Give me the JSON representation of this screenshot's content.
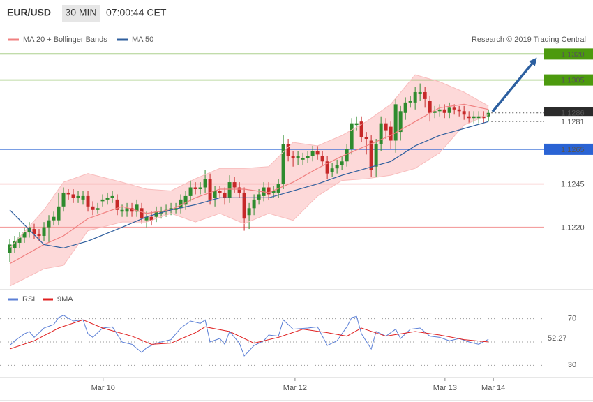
{
  "header": {
    "symbol": "EUR/USD",
    "interval": "30 MIN",
    "time": "07:00:44 CET"
  },
  "copyright": "Research © 2019 Trading Central",
  "chart_data": [
    {
      "type": "candlestick",
      "up_color": "#2e8b2e",
      "down_color": "#c62828",
      "xlim": [
        -2,
        109.4
      ],
      "ylim": [
        1.1186,
        1.1327
      ],
      "x": [
        0,
        1,
        2,
        3,
        4,
        5,
        6,
        7,
        8,
        9,
        10,
        11,
        12,
        13,
        14,
        15,
        16,
        17,
        18,
        19,
        20,
        21,
        22,
        23,
        24,
        25,
        26,
        27,
        28,
        29,
        30,
        31,
        32,
        33,
        34,
        35,
        36,
        37,
        38,
        39,
        40,
        41,
        42,
        43,
        44,
        45,
        46,
        47,
        48,
        49,
        50,
        51,
        52,
        53,
        54,
        55,
        56,
        57,
        58,
        59,
        60,
        61,
        62,
        63,
        64,
        65,
        66,
        67,
        68,
        69,
        70,
        71,
        72,
        73,
        74,
        75,
        76,
        77,
        78,
        79,
        80,
        81,
        82,
        83,
        84,
        85,
        86,
        87,
        88,
        89,
        90,
        91,
        92,
        93,
        94,
        95,
        96,
        97,
        98
      ],
      "open": [
        1.1205,
        1.1208,
        1.1211,
        1.1214,
        1.1217,
        1.1219,
        1.1216,
        1.1215,
        1.122,
        1.1224,
        1.1224,
        1.1232,
        1.124,
        1.1239,
        1.1237,
        1.1236,
        1.1238,
        1.1232,
        1.123,
        1.1235,
        1.1236,
        1.1237,
        1.1236,
        1.1229,
        1.1229,
        1.1231,
        1.1229,
        1.1231,
        1.1224,
        1.1226,
        1.1226,
        1.1228,
        1.1229,
        1.123,
        1.123,
        1.1231,
        1.1233,
        1.1238,
        1.1243,
        1.1242,
        1.1243,
        1.1248,
        1.1237,
        1.1241,
        1.124,
        1.1237,
        1.1246,
        1.1243,
        1.124,
        1.1227,
        1.1231,
        1.1236,
        1.1238,
        1.1243,
        1.124,
        1.124,
        1.1245,
        1.1268,
        1.1261,
        1.126,
        1.1259,
        1.126,
        1.1261,
        1.1264,
        1.1261,
        1.1258,
        1.1252,
        1.1254,
        1.1256,
        1.1258,
        1.1265,
        1.1279,
        1.1281,
        1.1272,
        1.127,
        1.1255,
        1.1268,
        1.128,
        1.1278,
        1.127,
        1.1275,
        1.1286,
        1.1292,
        1.1292,
        1.1297,
        1.1298,
        1.1293,
        1.1286,
        1.1287,
        1.1288,
        1.1286,
        1.1289,
        1.1288,
        1.1287,
        1.1284,
        1.1283,
        1.1283,
        1.1284,
        1.1284
      ],
      "high": [
        1.1213,
        1.1215,
        1.1217,
        1.122,
        1.1223,
        1.1222,
        1.1219,
        1.1223,
        1.1227,
        1.1229,
        1.124,
        1.1243,
        1.1242,
        1.1242,
        1.1241,
        1.1241,
        1.1241,
        1.1235,
        1.1234,
        1.1239,
        1.124,
        1.1241,
        1.1239,
        1.1233,
        1.1234,
        1.1234,
        1.1236,
        1.1234,
        1.1229,
        1.1229,
        1.1232,
        1.1232,
        1.1233,
        1.1234,
        1.1234,
        1.1239,
        1.1241,
        1.1247,
        1.1246,
        1.1246,
        1.1253,
        1.1251,
        1.1244,
        1.1244,
        1.1243,
        1.125,
        1.1249,
        1.1246,
        1.1243,
        1.1234,
        1.1239,
        1.1242,
        1.1246,
        1.1246,
        1.1244,
        1.1248,
        1.1273,
        1.1271,
        1.1264,
        1.1264,
        1.1263,
        1.1264,
        1.1267,
        1.1267,
        1.1264,
        1.1261,
        1.1257,
        1.1259,
        1.1261,
        1.1268,
        1.1283,
        1.1284,
        1.1284,
        1.1275,
        1.1273,
        1.1271,
        1.1284,
        1.1283,
        1.1281,
        1.1294,
        1.129,
        1.1295,
        1.1296,
        1.1301,
        1.1303,
        1.1301,
        1.1296,
        1.129,
        1.1291,
        1.1291,
        1.1292,
        1.1291,
        1.129,
        1.129,
        1.1287,
        1.1287,
        1.1287,
        1.1287,
        1.1288
      ],
      "low": [
        1.12,
        1.1205,
        1.1208,
        1.1211,
        1.1214,
        1.1213,
        1.1212,
        1.1212,
        1.1211,
        1.1221,
        1.1221,
        1.1229,
        1.1236,
        1.1234,
        1.1234,
        1.1233,
        1.1229,
        1.1227,
        1.1228,
        1.1232,
        1.1233,
        1.1234,
        1.1227,
        1.1226,
        1.1226,
        1.1226,
        1.1226,
        1.1222,
        1.122,
        1.1221,
        1.1223,
        1.1225,
        1.1226,
        1.1227,
        1.1228,
        1.1228,
        1.123,
        1.1235,
        1.1239,
        1.1239,
        1.124,
        1.1233,
        1.1232,
        1.1237,
        1.1233,
        1.1234,
        1.124,
        1.1237,
        1.1218,
        1.1219,
        1.1227,
        1.1233,
        1.1235,
        1.1236,
        1.1237,
        1.1237,
        1.1242,
        1.1258,
        1.1255,
        1.1256,
        1.1256,
        1.1257,
        1.1258,
        1.1259,
        1.1256,
        1.1248,
        1.1249,
        1.1251,
        1.1253,
        1.1255,
        1.1262,
        1.1276,
        1.1269,
        1.1262,
        1.1249,
        1.1249,
        1.1264,
        1.1271,
        1.1265,
        1.1263,
        1.127,
        1.1282,
        1.1289,
        1.1288,
        1.1293,
        1.1289,
        1.1281,
        1.1283,
        1.1284,
        1.1283,
        1.1283,
        1.1285,
        1.1284,
        1.1282,
        1.128,
        1.128,
        1.128,
        1.128,
        1.1281
      ],
      "close": [
        1.121,
        1.1212,
        1.1214,
        1.1217,
        1.122,
        1.1216,
        1.1215,
        1.122,
        1.1224,
        1.1226,
        1.1232,
        1.124,
        1.1239,
        1.1237,
        1.1238,
        1.1238,
        1.1232,
        1.123,
        1.1231,
        1.1236,
        1.1237,
        1.1238,
        1.123,
        1.123,
        1.1231,
        1.1229,
        1.1233,
        1.1225,
        1.1226,
        1.1224,
        1.1229,
        1.1229,
        1.123,
        1.1231,
        1.1231,
        1.1236,
        1.1238,
        1.1243,
        1.1242,
        1.1243,
        1.1248,
        1.1236,
        1.1241,
        1.124,
        1.1237,
        1.1246,
        1.1243,
        1.124,
        1.1225,
        1.1231,
        1.1236,
        1.1239,
        1.1243,
        1.1239,
        1.1241,
        1.1245,
        1.1268,
        1.1261,
        1.126,
        1.1261,
        1.126,
        1.1261,
        1.1264,
        1.1262,
        1.1258,
        1.1251,
        1.1254,
        1.1256,
        1.1258,
        1.1265,
        1.128,
        1.128,
        1.1272,
        1.1271,
        1.1253,
        1.1268,
        1.128,
        1.1276,
        1.127,
        1.1291,
        1.1287,
        1.1292,
        1.1293,
        1.1298,
        1.1298,
        1.1294,
        1.1286,
        1.1287,
        1.1288,
        1.1286,
        1.1289,
        1.1288,
        1.1287,
        1.1285,
        1.1283,
        1.1284,
        1.1284,
        1.1283,
        1.1286
      ],
      "lines": [
        {
          "name": "MA 20 + Bollinger Bands",
          "color": "#f08080",
          "band_color": "#fdd9d9",
          "x": [
            0,
            7,
            11,
            16,
            23,
            28,
            33,
            38,
            43,
            48,
            53,
            58,
            63,
            68,
            73,
            78,
            83,
            88,
            93,
            98
          ],
          "values": [
            1.1199,
            1.121,
            1.1215,
            1.1225,
            1.1232,
            1.1228,
            1.123,
            1.1237,
            1.1242,
            1.1242,
            1.124,
            1.1246,
            1.1254,
            1.1261,
            1.1267,
            1.1273,
            1.1281,
            1.1289,
            1.1291,
            1.1288
          ],
          "upper": [
            1.1208,
            1.123,
            1.1246,
            1.1251,
            1.1246,
            1.1242,
            1.1241,
            1.1248,
            1.1254,
            1.1254,
            1.1255,
            1.1269,
            1.1267,
            1.1273,
            1.1281,
            1.1291,
            1.1308,
            1.1304,
            1.1298,
            1.129
          ],
          "lower": [
            1.1186,
            1.1196,
            1.1198,
            1.1218,
            1.1223,
            1.1223,
            1.1228,
            1.1223,
            1.1228,
            1.1222,
            1.1228,
            1.1224,
            1.1238,
            1.1247,
            1.1248,
            1.125,
            1.1254,
            1.1263,
            1.1279,
            1.1285
          ]
        },
        {
          "name": "MA 50",
          "color": "#2f5f9e",
          "x": [
            0,
            7,
            11,
            16,
            23,
            28,
            33,
            38,
            43,
            48,
            53,
            58,
            63,
            68,
            73,
            78,
            83,
            88,
            93,
            98
          ],
          "values": [
            1.123,
            1.121,
            1.1208,
            1.1212,
            1.122,
            1.1226,
            1.123,
            1.1233,
            1.1237,
            1.1237,
            1.1237,
            1.1241,
            1.1245,
            1.125,
            1.1254,
            1.1258,
            1.1267,
            1.1273,
            1.1277,
            1.1281
          ]
        }
      ],
      "levels": [
        {
          "value": 1.132,
          "label": "1.1320",
          "color": "#5aa11e",
          "label_fill": "#4c9a0e",
          "label_text": "#ffffff",
          "dotted": false
        },
        {
          "value": 1.1305,
          "label": "1.1305",
          "color": "#5aa11e",
          "label_fill": "#4c9a0e",
          "label_text": "#ffffff",
          "dotted": false
        },
        {
          "value": 1.1286,
          "label": "1.1286",
          "color": "#555555",
          "label_fill": "#2b2b2b",
          "label_text": "#ffffff",
          "dotted": true
        },
        {
          "value": 1.1281,
          "label": "1.1281",
          "color": "#555555",
          "label_fill": "#ffffff",
          "label_text": "#2a63d4",
          "dotted": true
        },
        {
          "value": 1.1265,
          "label": "1.1265",
          "color": "#2a63d4",
          "label_fill": "#2a63d4",
          "label_text": "#ffffff",
          "dotted": false
        },
        {
          "value": 1.1245,
          "label": "1.1245",
          "color": "#f4a0a0",
          "label_fill": "#ffffff",
          "label_text": "#e0302a",
          "dotted": false
        },
        {
          "value": 1.122,
          "label": "1.1220",
          "color": "#f4a0a0",
          "label_fill": "#ffffff",
          "label_text": "#e0302a",
          "dotted": false
        }
      ]
    },
    {
      "type": "line",
      "xlim": [
        -2,
        109.4
      ],
      "ylim": [
        20,
        80
      ],
      "yticks": [
        30,
        70
      ],
      "reference_lines": [
        50
      ],
      "xticks": [
        {
          "value": 19.1,
          "label": "Mar 10"
        },
        {
          "value": 58.4,
          "label": "Mar 12"
        },
        {
          "value": 89.1,
          "label": "Mar 13"
        },
        {
          "value": 99,
          "label": "Mar 14"
        }
      ],
      "series": [
        {
          "name": "RSI",
          "color": "#5b7fd6",
          "x": [
            0,
            1,
            3,
            4,
            5,
            7,
            9,
            10,
            11,
            13,
            15,
            16,
            17,
            19,
            21,
            23,
            25,
            27,
            28,
            30,
            33,
            35,
            37,
            39,
            40,
            41,
            43,
            44,
            45,
            47,
            48,
            50,
            52,
            53,
            55,
            56,
            58,
            61,
            63,
            65,
            67,
            69,
            70,
            71,
            72,
            74,
            75,
            77,
            79,
            80,
            82,
            84,
            86,
            88,
            90,
            92,
            94,
            96,
            98
          ],
          "values": [
            47,
            51,
            57,
            59,
            54,
            62,
            65,
            71,
            73,
            68,
            69,
            57,
            54,
            62,
            63,
            50,
            48,
            41,
            45,
            49,
            52,
            62,
            68,
            66,
            69,
            50,
            53,
            48,
            59,
            49,
            38,
            47,
            51,
            56,
            55,
            69,
            61,
            62,
            63,
            47,
            51,
            63,
            71,
            72,
            57,
            44,
            59,
            55,
            61,
            53,
            61,
            62,
            55,
            54,
            51,
            53,
            50,
            48,
            52.27
          ]
        },
        {
          "name": "9MA",
          "color": "#e02020",
          "x": [
            0,
            5,
            10,
            15,
            19,
            25,
            29,
            33,
            38,
            40,
            45,
            50,
            55,
            60,
            65,
            69,
            72,
            77,
            83,
            88,
            93,
            98
          ],
          "values": [
            44,
            51,
            62,
            69,
            62,
            55,
            48,
            49,
            58,
            63,
            59,
            49,
            54,
            61,
            58,
            55,
            62,
            55,
            59,
            56,
            52,
            50
          ]
        }
      ]
    }
  ]
}
